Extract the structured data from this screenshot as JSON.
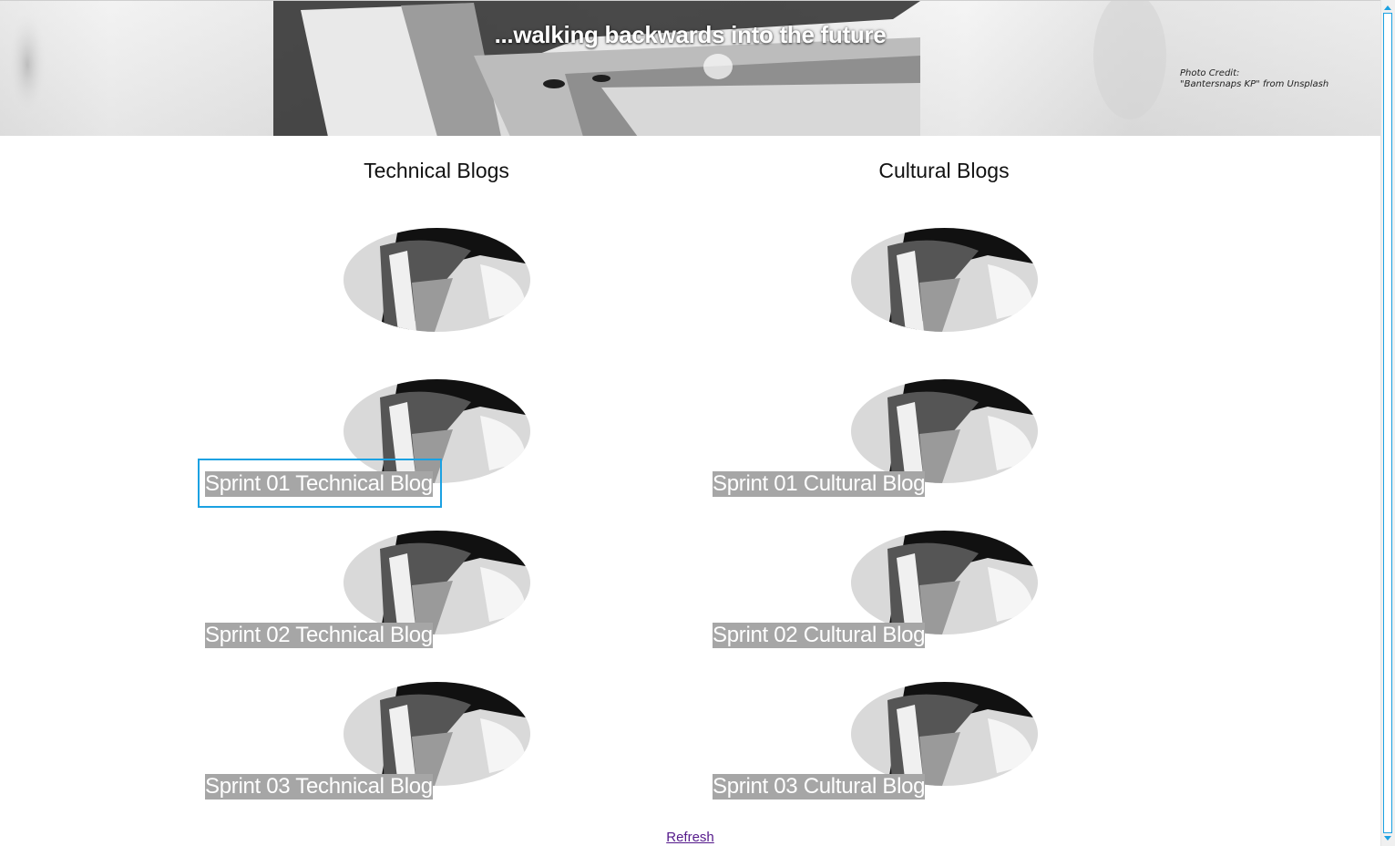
{
  "header": {
    "tagline": "...walking backwards into the future",
    "photo_credit_line1": "Photo Credit:",
    "photo_credit_line2": "\"Bantersnaps KP\" from Unsplash"
  },
  "columns": {
    "technical": {
      "heading": "Technical Blogs",
      "items": [
        {
          "label": "Sprint 01 Technical Blog"
        },
        {
          "label": "Sprint 02 Technical Blog"
        },
        {
          "label": "Sprint 03 Technical Blog"
        }
      ]
    },
    "cultural": {
      "heading": "Cultural Blogs",
      "items": [
        {
          "label": "Sprint 01 Cultural Blog"
        },
        {
          "label": "Sprint 02 Cultural Blog"
        },
        {
          "label": "Sprint 03 Cultural Blog"
        }
      ]
    }
  },
  "footer": {
    "refresh_label": "Refresh"
  },
  "colors": {
    "link_background": "#a6a6a6",
    "link_text": "#ffffff",
    "focus_ring": "#1ba1e2",
    "visited_link": "#551a8b"
  }
}
